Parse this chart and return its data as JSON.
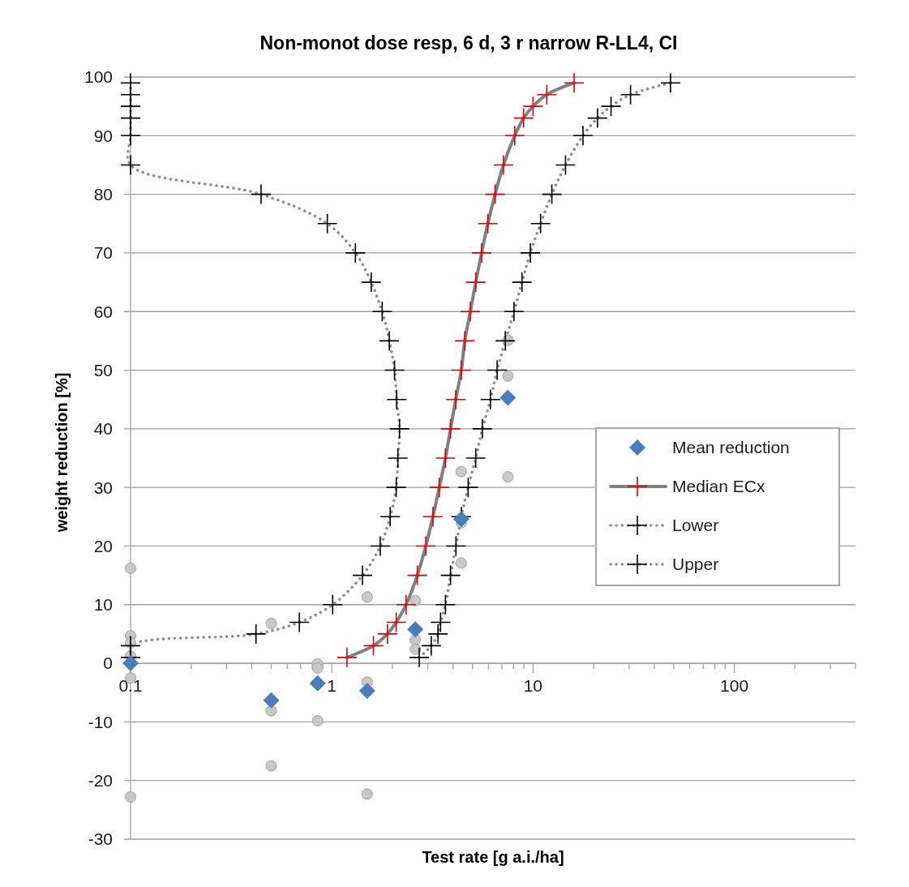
{
  "chart_data": {
    "type": "scatter",
    "title": "Non-monot dose resp, 6 d, 3 r narrow R-LL4, CI",
    "xlabel": "Test rate [g a.i./ha]",
    "ylabel": "weight reduction [%]",
    "log": "x",
    "xlim": [
      0.1,
      400
    ],
    "ylim": [
      -30,
      100
    ],
    "xticks": [
      0.1,
      {
        "value": 0.2,
        "label": null
      },
      {
        "value": 0.3,
        "label": null
      },
      {
        "value": 0.4,
        "label": null
      },
      {
        "value": 0.5,
        "label": null
      },
      {
        "value": 0.6,
        "label": null
      },
      {
        "value": 0.7,
        "label": null
      },
      {
        "value": 0.8,
        "label": null
      },
      {
        "value": 0.9,
        "label": null
      },
      1,
      {
        "value": 2,
        "label": null
      },
      {
        "value": 3,
        "label": null
      },
      {
        "value": 4,
        "label": null
      },
      {
        "value": 5,
        "label": null
      },
      {
        "value": 6,
        "label": null
      },
      {
        "value": 7,
        "label": null
      },
      {
        "value": 8,
        "label": null
      },
      {
        "value": 9,
        "label": null
      },
      10,
      {
        "value": 20,
        "label": null
      },
      {
        "value": 30,
        "label": null
      },
      {
        "value": 40,
        "label": null
      },
      {
        "value": 50,
        "label": null
      },
      {
        "value": 60,
        "label": null
      },
      {
        "value": 70,
        "label": null
      },
      {
        "value": 80,
        "label": null
      },
      {
        "value": 90,
        "label": null
      },
      100,
      {
        "value": 200,
        "label": null
      },
      {
        "value": 300,
        "label": null
      },
      {
        "value": 400,
        "label": null
      }
    ],
    "yticks": [
      -30,
      -20,
      -10,
      0,
      10,
      20,
      30,
      40,
      50,
      60,
      70,
      80,
      90,
      100
    ],
    "grid": "y",
    "legend": "right",
    "series": [
      {
        "name": "Mean reduction",
        "marker": "diamond",
        "color": "#4a7ebb",
        "x": [
          0.1,
          0.5,
          0.85,
          1.5,
          2.6,
          4.4,
          7.5
        ],
        "values": [
          0,
          -6.3,
          -3.4,
          -4.7,
          5.8,
          24.6,
          45.3
        ]
      },
      {
        "name": "Median ECx",
        "type": "line",
        "line_style": "solid",
        "marker": "none",
        "color": "#808080",
        "x": [
          1.19,
          1.61,
          1.89,
          2.09,
          2.34,
          2.66,
          2.93,
          3.18,
          3.42,
          3.67,
          3.89,
          4.13,
          4.4,
          4.58,
          4.88,
          5.19,
          5.55,
          5.96,
          6.48,
          7.13,
          8.11,
          8.97,
          10.0,
          11.7,
          16.0
        ],
        "values": [
          1,
          3,
          5,
          7,
          10,
          15,
          20,
          25,
          30,
          35,
          40,
          45,
          50,
          55,
          60,
          65,
          70,
          75,
          80,
          85,
          90,
          93,
          95,
          97,
          99
        ]
      },
      {
        "type": "scatter",
        "marker": "cross",
        "color": "#e00000",
        "x": [
          1.19,
          1.61,
          1.89,
          2.09,
          2.34,
          2.66,
          2.93,
          3.18,
          3.42,
          3.67,
          3.89,
          4.13,
          4.4,
          4.58,
          4.88,
          5.19,
          5.55,
          5.96,
          6.48,
          7.13,
          8.11,
          8.97,
          10.0,
          11.7,
          16.0
        ],
        "values": [
          1,
          3,
          5,
          7,
          10,
          15,
          20,
          25,
          30,
          35,
          40,
          45,
          50,
          55,
          60,
          65,
          70,
          75,
          80,
          85,
          90,
          93,
          95,
          97,
          99
        ]
      },
      {
        "name": "Lower",
        "type": "line",
        "line_style": "dotted",
        "marker": "none",
        "color": "#8c8c8c",
        "x": [
          0.1,
          0.1,
          0.42,
          0.69,
          1.01,
          1.42,
          1.74,
          1.95,
          2.09,
          2.13,
          2.17,
          2.1,
          2.05,
          1.93,
          1.78,
          1.57,
          1.31,
          0.95,
          0.445,
          0.1,
          0.1,
          0.1,
          0.1,
          0.1,
          0.1
        ],
        "values": [
          1,
          3,
          5,
          7,
          10,
          15,
          20,
          25,
          30,
          35,
          40,
          45,
          50,
          55,
          60,
          65,
          70,
          75,
          80,
          85,
          90,
          93,
          95,
          97,
          99
        ]
      },
      {
        "type": "scatter",
        "marker": "cross",
        "color": "#000000",
        "x": [
          0.1,
          0.1,
          0.42,
          0.69,
          1.01,
          1.42,
          1.74,
          1.95,
          2.09,
          2.13,
          2.17,
          2.1,
          2.05,
          1.93,
          1.78,
          1.57,
          1.31,
          0.95,
          0.445,
          0.1,
          0.1,
          0.1,
          0.1,
          0.1,
          0.1
        ],
        "values": [
          1,
          3,
          5,
          7,
          10,
          15,
          20,
          25,
          30,
          35,
          40,
          45,
          50,
          55,
          60,
          65,
          70,
          75,
          80,
          85,
          90,
          93,
          95,
          97,
          99
        ]
      },
      {
        "name": "Upper",
        "type": "line",
        "line_style": "dotted",
        "marker": "none",
        "color": "#8c8c8c",
        "x": [
          2.72,
          3.12,
          3.37,
          3.47,
          3.67,
          3.89,
          4.14,
          4.4,
          4.76,
          5.19,
          5.6,
          6.14,
          6.63,
          7.28,
          8.04,
          8.81,
          9.7,
          10.9,
          12.4,
          14.5,
          17.7,
          20.9,
          24.4,
          30.5,
          48.2
        ],
        "values": [
          1,
          3,
          5,
          7,
          10,
          15,
          20,
          25,
          30,
          35,
          40,
          45,
          50,
          55,
          60,
          65,
          70,
          75,
          80,
          85,
          90,
          93,
          95,
          97,
          99
        ]
      },
      {
        "type": "scatter",
        "marker": "cross",
        "color": "#000000",
        "x": [
          2.72,
          3.12,
          3.37,
          3.47,
          3.67,
          3.89,
          4.14,
          4.4,
          4.76,
          5.19,
          5.6,
          6.14,
          6.63,
          7.28,
          8.04,
          8.81,
          9.7,
          10.9,
          12.4,
          14.5,
          17.7,
          20.9,
          24.4,
          30.5,
          48.2
        ],
        "values": [
          1,
          3,
          5,
          7,
          10,
          15,
          20,
          25,
          30,
          35,
          40,
          45,
          50,
          55,
          60,
          65,
          70,
          75,
          80,
          85,
          90,
          93,
          95,
          97,
          99
        ]
      },
      {
        "marker": "circle",
        "color": "#c8c8c8",
        "x": [
          0.1,
          0.1,
          0.1,
          0.1,
          0.1,
          0.1,
          0.5,
          0.5,
          0.5,
          0.85,
          0.85,
          0.85,
          1.5,
          1.5,
          1.5,
          2.6,
          2.6,
          2.6,
          4.4,
          4.4,
          4.4,
          7.5,
          7.5,
          7.5
        ],
        "values": [
          16.2,
          4.7,
          3.5,
          1.2,
          -2.5,
          -22.8,
          6.8,
          -8.1,
          -17.5,
          -0.1,
          -0.8,
          -9.8,
          11.3,
          -3.2,
          -22.3,
          10.7,
          4.0,
          2.4,
          32.7,
          24,
          17.1,
          55.1,
          49.0,
          31.8
        ]
      }
    ]
  }
}
